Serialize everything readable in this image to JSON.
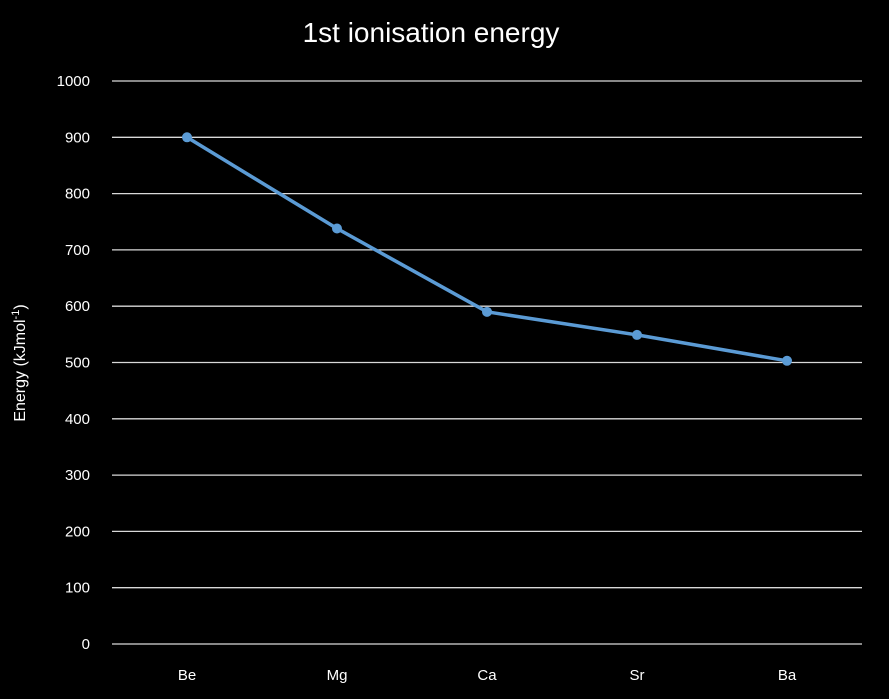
{
  "chart_data": {
    "type": "line",
    "title": "1st ionisation energy",
    "xlabel": "",
    "ylabel": "Energy  (kJmol",
    "ylabel_superscript": "-1",
    "ylabel_suffix": ")",
    "categories": [
      "Be",
      "Mg",
      "Ca",
      "Sr",
      "Ba"
    ],
    "series": [
      {
        "values": [
          900,
          738,
          590,
          549,
          503
        ],
        "color": "#5b9bd5"
      }
    ],
    "ylim": [
      0,
      1000
    ],
    "yticks": [
      "0",
      "100",
      "200",
      "300",
      "400",
      "500",
      "600",
      "700",
      "800",
      "900",
      "1000"
    ],
    "grid": true,
    "legend": "none",
    "background": "#000000",
    "text_color": "#ffffff",
    "grid_color": "#d9d9d9"
  }
}
